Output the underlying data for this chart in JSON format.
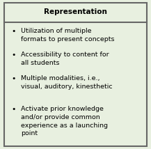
{
  "title": "Representation",
  "bullets": [
    "Utilization of multiple\nformats to present concepts",
    "Accessibility to content for\nall students",
    "Multiple modalities, i.e.,\nvisual, auditory, kinesthetic",
    "Activate prior knowledge\nand/or provide common\nexperience as a launching\npoint"
  ],
  "bg_color": "#e8f0e0",
  "border_color": "#666666",
  "title_fontsize": 7.5,
  "body_fontsize": 6.8,
  "figsize": [
    2.17,
    2.14
  ],
  "dpi": 100
}
